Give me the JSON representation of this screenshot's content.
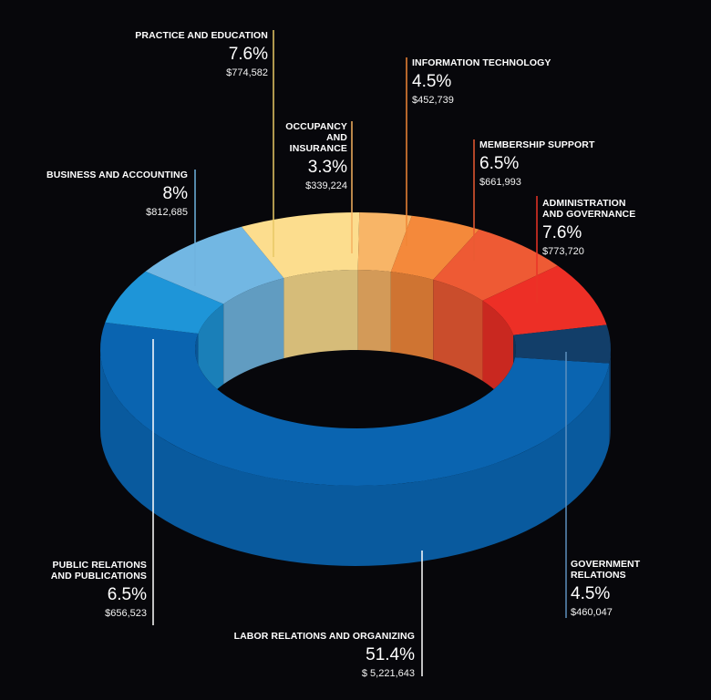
{
  "chart_data": {
    "type": "pie",
    "variant": "3d-donut",
    "slices": [
      {
        "label": "LABOR RELATIONS AND ORGANIZIZING",
        "percent": 51.4,
        "amount": "$ 5,221,643",
        "color": "#0a64b0"
      },
      {
        "label": "PUBLIC RELATIONS AND PUBLICATIONS",
        "percent": 6.5,
        "amount": "$656,523",
        "color": "#1e95d8"
      },
      {
        "label": "BUSINESS AND ACCOUNTING",
        "percent": 8,
        "amount": "$812,685",
        "color": "#72b7e3"
      },
      {
        "label": "PRACTICE AND EDUCATION",
        "percent": 7.6,
        "amount": "$774,582",
        "color": "#fcdd8e"
      },
      {
        "label": "OCCUPANCY AND INSURANCE",
        "percent": 3.3,
        "amount": "$339,224",
        "color": "#f8b567"
      },
      {
        "label": "INFORMATION TECHNOLOGY",
        "percent": 4.5,
        "amount": "$452,739",
        "color": "#f4893b"
      },
      {
        "label": "MEMBERSHIP SUPPORT",
        "percent": 6.5,
        "amount": "$661,993",
        "color": "#ee5a34"
      },
      {
        "label": "ADMINISTRATION AND GOVERNANCE",
        "percent": 7.6,
        "amount": "$773,720",
        "color": "#ed2f26"
      },
      {
        "label": "GOVERNMENT RELATIONS",
        "percent": 4.5,
        "amount": "$460,047",
        "color": "#123e69"
      }
    ]
  },
  "labels": {
    "practice": {
      "name": "PRACTICE AND EDUCATION",
      "pct": "7.6%",
      "amt": "$774,582"
    },
    "it": {
      "name": "INFORMATION TECHNOLOGY",
      "pct": "4.5%",
      "amt": "$452,739"
    },
    "occupancy": {
      "name": "OCCUPANCY\nAND\nINSURANCE",
      "pct": "3.3%",
      "amt": "$339,224"
    },
    "membership": {
      "name": "MEMBERSHIP SUPPORT",
      "pct": "6.5%",
      "amt": "$661,993"
    },
    "business": {
      "name": "BUSINESS AND ACCOUNTING",
      "pct": "8%",
      "amt": "$812,685"
    },
    "admin": {
      "name": "ADMINISTRATION\nAND GOVERNANCE",
      "pct": "7.6%",
      "amt": "$773,720"
    },
    "publicrel": {
      "name": "PUBLIC RELATIONS\nAND PUBLICATIONS",
      "pct": "6.5%",
      "amt": "$656,523"
    },
    "government": {
      "name": "GOVERNMENT\nRELATIONS",
      "pct": "4.5%",
      "amt": "$460,047"
    },
    "labor": {
      "name": "LABOR RELATIONS AND ORGANIZING",
      "pct": "51.4%",
      "amt": "$ 5,221,643"
    }
  }
}
